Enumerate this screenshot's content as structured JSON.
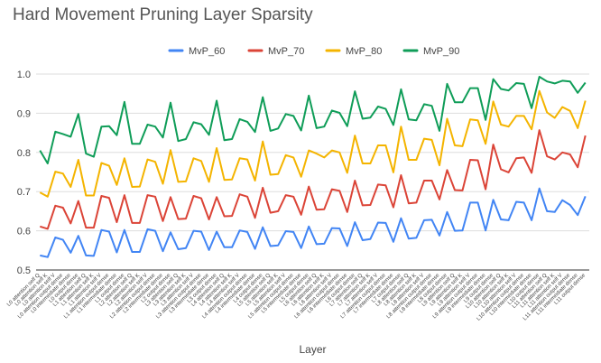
{
  "chart_data": {
    "type": "line",
    "title": "Hard Movement Pruning Layer Sparsity",
    "xlabel": "Layer",
    "ylabel": "",
    "ylim": [
      0.5,
      1.0
    ],
    "yticks": [
      "0.5",
      "0.6",
      "0.7",
      "0.8",
      "0.9",
      "1.0"
    ],
    "grid": true,
    "legend_position": "top",
    "categories": [
      "L0 attention self Q",
      "L0 attention self K",
      "L0 attention self V",
      "L0 attention output dense",
      "L0 intermediate dense",
      "L0 output dense",
      "L1 attention self Q",
      "L1 attention self K",
      "L1 attention self V",
      "L1 attention output dense",
      "L1 intermediate dense",
      "L1 output dense",
      "L2 attention self Q",
      "L2 attention self K",
      "L2 attention self V",
      "L2 attention output dense",
      "L2 intermediate dense",
      "L2 output dense",
      "L3 attention self Q",
      "L3 attention self K",
      "L3 attention self V",
      "L3 attention output dense",
      "L3 intermediate dense",
      "L3 output dense",
      "L4 attention self Q",
      "L4 attention self K",
      "L4 attention self V",
      "L4 attention output dense",
      "L4 intermediate dense",
      "L4 output dense",
      "L5 attention self Q",
      "L5 attention self K",
      "L5 attention self V",
      "L5 attention output dense",
      "L5 intermediate dense",
      "L5 output dense",
      "L6 attention self Q",
      "L6 attention self K",
      "L6 attention self V",
      "L6 attention output dense",
      "L6 intermediate dense",
      "L6 output dense",
      "L7 attention self Q",
      "L7 attention self K",
      "L7 attention self V",
      "L7 attention output dense",
      "L7 intermediate dense",
      "L7 output dense",
      "L8 attention self Q",
      "L8 attention self K",
      "L8 attention self V",
      "L8 attention output dense",
      "L8 intermediate dense",
      "L8 output dense",
      "L9 attention self Q",
      "L9 attention self K",
      "L9 attention self V",
      "L9 attention output dense",
      "L9 intermediate dense",
      "L9 output dense",
      "L10 attention self Q",
      "L10 attention self K",
      "L10 attention self V",
      "L10 attention output dense",
      "L10 intermediate dense",
      "L10 output dense",
      "L11 attention self Q",
      "L11 attention self K",
      "L11 attention self V",
      "L11 attention output dense",
      "L11 intermediate dense",
      "L11 output dense"
    ],
    "series": [
      {
        "name": "MvP_60",
        "color": "#4285f4",
        "values": [
          0.537,
          0.533,
          0.583,
          0.577,
          0.544,
          0.587,
          0.537,
          0.536,
          0.602,
          0.598,
          0.545,
          0.602,
          0.546,
          0.546,
          0.604,
          0.6,
          0.548,
          0.596,
          0.553,
          0.556,
          0.6,
          0.598,
          0.551,
          0.598,
          0.558,
          0.558,
          0.601,
          0.597,
          0.554,
          0.609,
          0.561,
          0.563,
          0.599,
          0.597,
          0.556,
          0.611,
          0.566,
          0.567,
          0.607,
          0.606,
          0.561,
          0.622,
          0.576,
          0.579,
          0.621,
          0.62,
          0.572,
          0.632,
          0.58,
          0.582,
          0.627,
          0.628,
          0.588,
          0.648,
          0.6,
          0.601,
          0.672,
          0.672,
          0.601,
          0.679,
          0.629,
          0.627,
          0.674,
          0.672,
          0.627,
          0.708,
          0.65,
          0.648,
          0.678,
          0.666,
          0.64,
          0.688
        ]
      },
      {
        "name": "MvP_70",
        "color": "#db4437",
        "values": [
          0.611,
          0.605,
          0.664,
          0.659,
          0.619,
          0.676,
          0.608,
          0.608,
          0.689,
          0.684,
          0.622,
          0.691,
          0.62,
          0.62,
          0.691,
          0.687,
          0.625,
          0.686,
          0.63,
          0.631,
          0.689,
          0.683,
          0.629,
          0.686,
          0.637,
          0.638,
          0.693,
          0.687,
          0.633,
          0.71,
          0.646,
          0.65,
          0.691,
          0.687,
          0.641,
          0.713,
          0.654,
          0.655,
          0.706,
          0.702,
          0.648,
          0.728,
          0.665,
          0.666,
          0.718,
          0.716,
          0.66,
          0.742,
          0.67,
          0.672,
          0.728,
          0.728,
          0.68,
          0.755,
          0.704,
          0.703,
          0.781,
          0.78,
          0.706,
          0.82,
          0.757,
          0.749,
          0.785,
          0.787,
          0.748,
          0.857,
          0.79,
          0.782,
          0.8,
          0.795,
          0.762,
          0.843
        ]
      },
      {
        "name": "MvP_80",
        "color": "#f4b400",
        "values": [
          0.698,
          0.687,
          0.751,
          0.746,
          0.712,
          0.781,
          0.69,
          0.69,
          0.773,
          0.766,
          0.717,
          0.785,
          0.712,
          0.713,
          0.782,
          0.776,
          0.72,
          0.806,
          0.725,
          0.726,
          0.785,
          0.778,
          0.725,
          0.811,
          0.73,
          0.731,
          0.785,
          0.782,
          0.728,
          0.828,
          0.743,
          0.745,
          0.793,
          0.787,
          0.738,
          0.805,
          0.797,
          0.787,
          0.805,
          0.8,
          0.748,
          0.843,
          0.772,
          0.772,
          0.818,
          0.818,
          0.749,
          0.866,
          0.781,
          0.781,
          0.835,
          0.832,
          0.767,
          0.886,
          0.818,
          0.816,
          0.884,
          0.882,
          0.822,
          0.93,
          0.871,
          0.866,
          0.893,
          0.893,
          0.859,
          0.957,
          0.902,
          0.888,
          0.916,
          0.906,
          0.862,
          0.932
        ]
      },
      {
        "name": "MvP_90",
        "color": "#0f9d58",
        "values": [
          0.805,
          0.772,
          0.853,
          0.847,
          0.84,
          0.898,
          0.797,
          0.789,
          0.866,
          0.867,
          0.844,
          0.929,
          0.822,
          0.822,
          0.871,
          0.866,
          0.838,
          0.927,
          0.829,
          0.834,
          0.877,
          0.872,
          0.845,
          0.932,
          0.831,
          0.834,
          0.885,
          0.878,
          0.852,
          0.941,
          0.855,
          0.861,
          0.898,
          0.893,
          0.856,
          0.945,
          0.862,
          0.866,
          0.907,
          0.901,
          0.867,
          0.956,
          0.886,
          0.889,
          0.917,
          0.911,
          0.87,
          0.961,
          0.884,
          0.882,
          0.923,
          0.919,
          0.855,
          0.975,
          0.928,
          0.928,
          0.964,
          0.964,
          0.883,
          0.987,
          0.962,
          0.958,
          0.977,
          0.975,
          0.913,
          0.993,
          0.981,
          0.976,
          0.983,
          0.981,
          0.952,
          0.978
        ]
      }
    ]
  }
}
